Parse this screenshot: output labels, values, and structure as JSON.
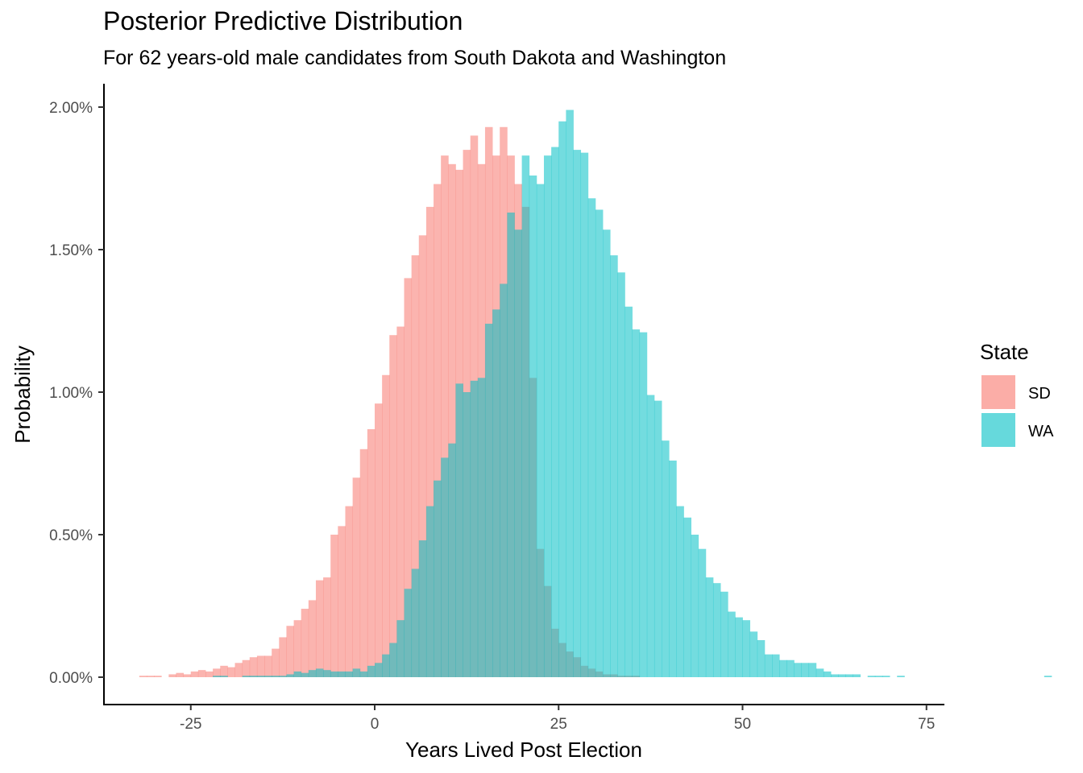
{
  "chart_data": {
    "type": "histogram",
    "title": "Posterior Predictive Distribution",
    "subtitle": "For 62 years-old male candidates from South Dakota and Washington",
    "xlabel": "Years Lived Post Election",
    "ylabel": "Probability",
    "xlim": [
      -37,
      77
    ],
    "ylim": [
      -0.1,
      2.1
    ],
    "x_ticks": [
      -25,
      0,
      25,
      50,
      75
    ],
    "x_tick_labels": [
      "-25",
      "0",
      "25",
      "50",
      "75"
    ],
    "y_ticks": [
      0,
      0.5,
      1.0,
      1.5,
      2.0
    ],
    "y_tick_labels": [
      "0.00%",
      "0.50%",
      "1.00%",
      "1.50%",
      "2.00%"
    ],
    "bin_width": 1,
    "grid": false,
    "legend": {
      "title": "State",
      "position": "right",
      "entries": [
        {
          "label": "SD",
          "color": "#F8766D"
        },
        {
          "label": "WA",
          "color": "#00BFC4"
        }
      ]
    },
    "series": [
      {
        "name": "SD",
        "color": "#F8766D",
        "x_start": -32,
        "values": [
          0.005,
          0.005,
          0.005,
          0.0,
          0.01,
          0.015,
          0.01,
          0.02,
          0.025,
          0.02,
          0.03,
          0.04,
          0.035,
          0.05,
          0.06,
          0.07,
          0.075,
          0.075,
          0.1,
          0.14,
          0.18,
          0.2,
          0.24,
          0.27,
          0.34,
          0.35,
          0.5,
          0.53,
          0.6,
          0.7,
          0.8,
          0.87,
          0.96,
          1.06,
          1.2,
          1.23,
          1.4,
          1.48,
          1.55,
          1.65,
          1.73,
          1.83,
          1.8,
          1.78,
          1.85,
          1.9,
          1.8,
          1.93,
          1.83,
          1.93,
          1.83,
          1.73,
          1.65,
          1.05,
          0.45,
          0.32,
          0.17,
          0.12,
          0.09,
          0.07,
          0.04,
          0.03,
          0.02,
          0.01,
          0.01,
          0.005,
          0.005,
          0.005
        ]
      },
      {
        "name": "WA",
        "color": "#00BFC4",
        "x_start": -22,
        "values": [
          0.005,
          0.005,
          0.0,
          0.0,
          0.005,
          0.005,
          0.005,
          0.005,
          0.005,
          0.005,
          0.01,
          0.02,
          0.015,
          0.025,
          0.03,
          0.025,
          0.02,
          0.02,
          0.02,
          0.03,
          0.02,
          0.04,
          0.05,
          0.08,
          0.12,
          0.2,
          0.31,
          0.38,
          0.48,
          0.6,
          0.69,
          0.77,
          0.82,
          1.03,
          1.0,
          1.04,
          1.05,
          1.24,
          1.29,
          1.38,
          1.63,
          1.57,
          1.83,
          1.76,
          1.73,
          1.83,
          1.86,
          1.95,
          1.99,
          1.85,
          1.84,
          1.68,
          1.64,
          1.57,
          1.48,
          1.42,
          1.3,
          1.22,
          1.21,
          0.99,
          0.97,
          0.83,
          0.76,
          0.6,
          0.56,
          0.5,
          0.45,
          0.35,
          0.33,
          0.3,
          0.23,
          0.21,
          0.2,
          0.16,
          0.13,
          0.08,
          0.08,
          0.06,
          0.06,
          0.05,
          0.05,
          0.05,
          0.03,
          0.02,
          0.01,
          0.01,
          0.01,
          0.01,
          0.0,
          0.005,
          0.005,
          0.005,
          0.0,
          0.005,
          0.0,
          0.0,
          0.0,
          0.0,
          0.0,
          0.0,
          0.0,
          0.0,
          0.0,
          0.0,
          0.0,
          0.0,
          0.0,
          0.0,
          0.0,
          0.0,
          0.0,
          0.0,
          0.0,
          0.005
        ]
      }
    ]
  }
}
